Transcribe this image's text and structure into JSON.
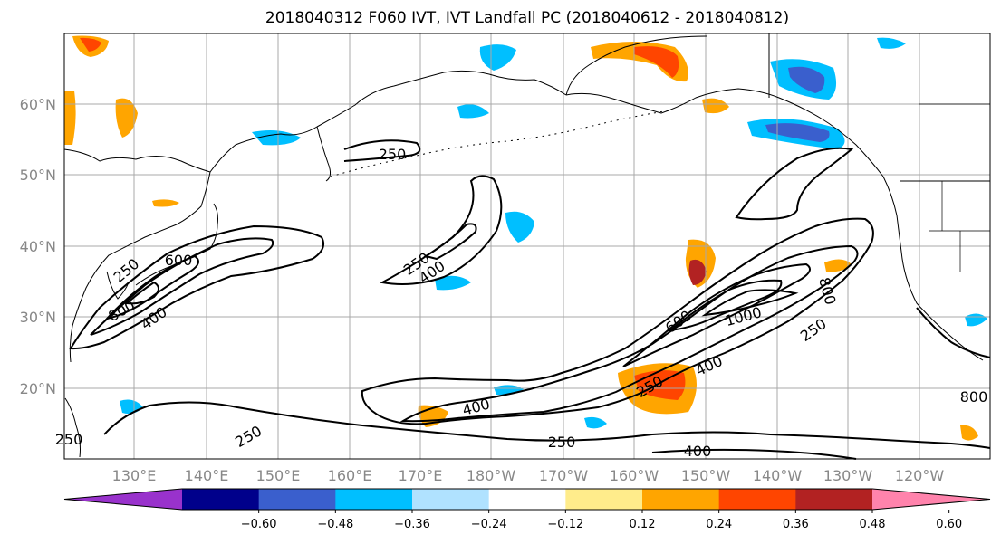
{
  "title": "2018040312 F060 IVT, IVT Landfall PC (2018040612 - 2018040812)",
  "axes": {
    "lon_labels": [
      "130°E",
      "140°E",
      "150°E",
      "160°E",
      "170°E",
      "180°W",
      "170°W",
      "160°W",
      "150°W",
      "140°W",
      "130°W",
      "120°W"
    ],
    "lat_labels": [
      "60°N",
      "50°N",
      "40°N",
      "30°N",
      "20°N"
    ]
  },
  "contour_labels": [
    "250",
    "600",
    "250",
    "800",
    "400",
    "250",
    "400",
    "250",
    "400",
    "250",
    "250",
    "800",
    "600",
    "1000",
    "250",
    "400",
    "400",
    "250",
    "800"
  ],
  "colorbar": {
    "ticks": [
      "−0.60",
      "−0.48",
      "−0.36",
      "−0.24",
      "−0.12",
      "0.12",
      "0.24",
      "0.36",
      "0.48",
      "0.60"
    ],
    "colors": [
      "#9932cc",
      "#00008b",
      "#3a5fcd",
      "#00bfff",
      "#b0e2ff",
      "#ffffff",
      "#ffec8b",
      "#ffa500",
      "#ff4500",
      "#b22222",
      "#ff83ac"
    ]
  },
  "colors": {
    "land_outline": "#000000",
    "grid": "#a8a8a8",
    "contour": "#000000"
  }
}
